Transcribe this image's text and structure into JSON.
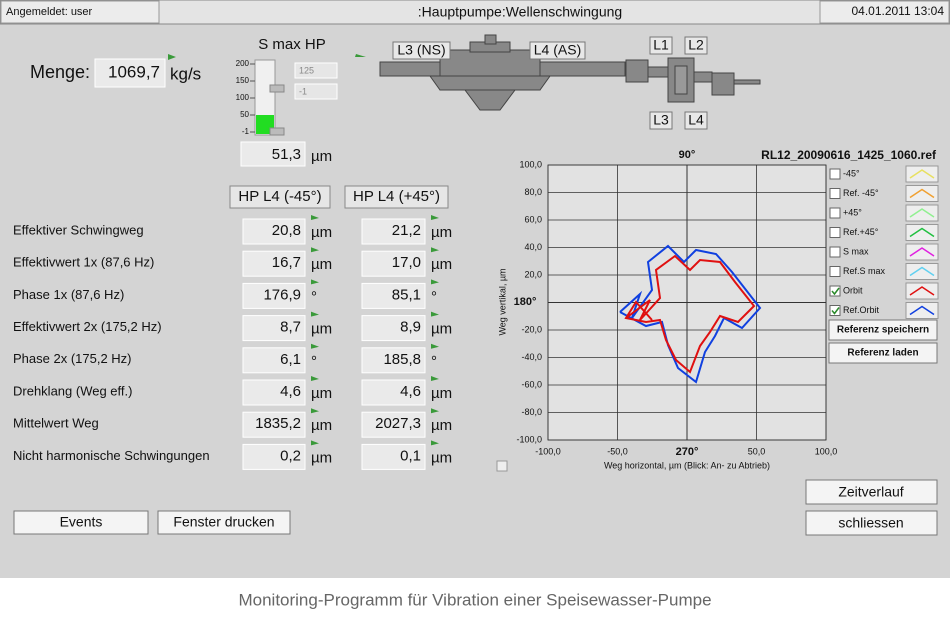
{
  "header": {
    "user": "Angemeldet: user",
    "title": ":Hauptpumpe:Wellenschwingung",
    "datetime": "04.01.2011 13:04"
  },
  "flow": {
    "label": "Menge:",
    "value": "1069,7",
    "unit": "kg/s"
  },
  "gauge": {
    "title": "S max HP",
    "scale": [
      "200",
      "150",
      "100",
      "50",
      "-1"
    ],
    "upper": "125",
    "lower": "-1",
    "value": "51,3",
    "unit": "µm"
  },
  "pump": {
    "labels": [
      "L3 (NS)",
      "L4 (AS)",
      "L1",
      "L2",
      "L3",
      "L4"
    ]
  },
  "table": {
    "headers": [
      "HP L4 (-45°)",
      "HP L4 (+45°)"
    ],
    "rows": [
      {
        "label": "Effektiver Schwingweg",
        "cells": [
          [
            "20,8",
            "µm"
          ],
          [
            "21,2",
            "µm"
          ]
        ]
      },
      {
        "label": "Effektivwert 1x (87,6 Hz)",
        "cells": [
          [
            "16,7",
            "µm"
          ],
          [
            "17,0",
            "µm"
          ]
        ]
      },
      {
        "label": "Phase 1x  (87,6 Hz)",
        "cells": [
          [
            "176,9",
            "°"
          ],
          [
            "85,1",
            "°"
          ]
        ]
      },
      {
        "label": "Effektivwert 2x (175,2 Hz)",
        "cells": [
          [
            "8,7",
            "µm"
          ],
          [
            "8,9",
            "µm"
          ]
        ]
      },
      {
        "label": "Phase 2x  (175,2 Hz)",
        "cells": [
          [
            "6,1",
            "°"
          ],
          [
            "185,8",
            "°"
          ]
        ]
      },
      {
        "label": "Drehklang (Weg eff.)",
        "cells": [
          [
            "4,6",
            "µm"
          ],
          [
            "4,6",
            "µm"
          ]
        ]
      },
      {
        "label": "Mittelwert Weg",
        "cells": [
          [
            "1835,2",
            "µm"
          ],
          [
            "2027,3",
            "µm"
          ]
        ]
      },
      {
        "label": "Nicht harmonische Schwingungen",
        "cells": [
          [
            "0,2",
            "µm"
          ],
          [
            "0,1",
            "µm"
          ]
        ]
      }
    ]
  },
  "orbit": {
    "file": "RL12_20090616_1425_1060.ref",
    "top": "90°",
    "left": "180°",
    "bottom": "270°",
    "ylabel": "Weg vertikal, µm",
    "xlabel": "Weg horizontal, µm (Blick: An- zu Abtrieb)",
    "xlim": [
      -100,
      100
    ],
    "ylim": [
      -100,
      100
    ],
    "xticks": [
      {
        "value": -100,
        "label": "-100,0"
      },
      {
        "value": -50,
        "label": "-50,0"
      },
      {
        "value": 50,
        "label": "50,0"
      },
      {
        "value": 100,
        "label": "100,0"
      }
    ],
    "yticks": [
      {
        "value": 100,
        "label": "100,0"
      },
      {
        "value": 80,
        "label": "80,0"
      },
      {
        "value": 60,
        "label": "60,0"
      },
      {
        "value": 40,
        "label": "40,0"
      },
      {
        "value": 20,
        "label": "20,0"
      },
      {
        "value": -20,
        "label": "-20,0"
      },
      {
        "value": -40,
        "label": "-40,0"
      },
      {
        "value": -60,
        "label": "-60,0"
      },
      {
        "value": -80,
        "label": "-80,0"
      },
      {
        "value": -100,
        "label": "-100,0"
      }
    ],
    "legend": [
      {
        "name": "-45°",
        "checked": false,
        "color": "#e8e060"
      },
      {
        "name": "Ref. -45°",
        "checked": false,
        "color": "#f0a030"
      },
      {
        "name": "+45°",
        "checked": false,
        "color": "#90f090"
      },
      {
        "name": "Ref.+45°",
        "checked": false,
        "color": "#20c040"
      },
      {
        "name": "S max",
        "checked": false,
        "color": "#e020e0"
      },
      {
        "name": "Ref.S max",
        "checked": false,
        "color": "#60d0f0"
      },
      {
        "name": "Orbit",
        "checked": true,
        "color": "#e01010"
      },
      {
        "name": "Ref.Orbit",
        "checked": true,
        "color": "#1040e0"
      }
    ],
    "buttons": [
      "Referenz speichern",
      "Referenz laden"
    ]
  },
  "buttons": {
    "timeline": "Zeitverlauf",
    "close": "schliessen",
    "events": "Events",
    "print": "Fenster drucken"
  },
  "caption": "Monitoring-Programm für Vibration einer Speisewasser-Pumpe"
}
